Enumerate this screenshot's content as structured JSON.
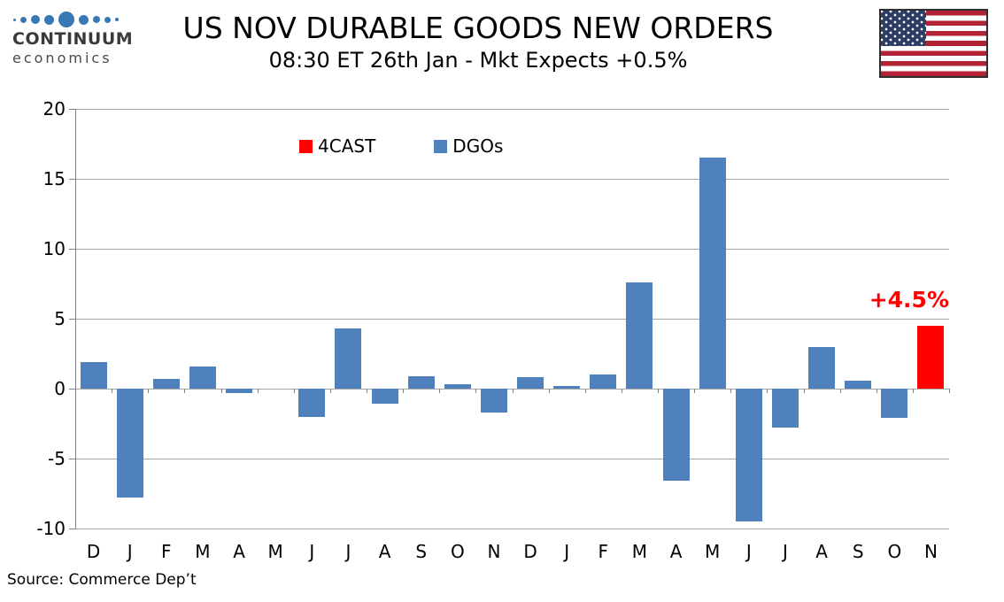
{
  "logo": {
    "name": "CONTINUUM",
    "sub": "economics",
    "dot_color": "#3878B4",
    "dot_sizes": [
      3,
      7,
      10,
      11,
      18,
      11,
      8,
      7,
      4
    ]
  },
  "flag": {
    "icon": "us-flag"
  },
  "chart_data": {
    "type": "bar",
    "title": "US NOV DURABLE GOODS NEW ORDERS",
    "subtitle": "08:30 ET 26th Jan - Mkt Expects +0.5%",
    "categories": [
      "D",
      "J",
      "F",
      "M",
      "A",
      "M",
      "J",
      "J",
      "A",
      "S",
      "O",
      "N",
      "D",
      "J",
      "F",
      "M",
      "A",
      "M",
      "J",
      "J",
      "A",
      "S",
      "O",
      "N"
    ],
    "series": [
      {
        "name": "4CAST",
        "color": "#FF0000",
        "values": [
          null,
          null,
          null,
          null,
          null,
          null,
          null,
          null,
          null,
          null,
          null,
          null,
          null,
          null,
          null,
          null,
          null,
          null,
          null,
          null,
          null,
          null,
          null,
          4.5
        ]
      },
      {
        "name": "DGOs",
        "color": "#4F81BD",
        "values": [
          1.9,
          -7.8,
          0.7,
          1.6,
          -0.3,
          0.0,
          -2.0,
          4.3,
          -1.1,
          0.9,
          0.3,
          -1.7,
          0.8,
          0.2,
          1.0,
          7.6,
          -6.6,
          16.5,
          -9.5,
          -2.8,
          3.0,
          0.6,
          -2.1,
          null
        ]
      }
    ],
    "xlabel": "",
    "ylabel": "",
    "ylim": [
      -10,
      20
    ],
    "ytick_step": 5,
    "grid": true,
    "legend_position": "top-center-inside",
    "annotation": {
      "text": "+4.5%",
      "color": "#FF0000",
      "category_index": 23
    },
    "colors": {
      "grid": "#A6A6A6",
      "axis": "#808080"
    }
  },
  "footer": {
    "source": "Source: Commerce Dep’t"
  }
}
